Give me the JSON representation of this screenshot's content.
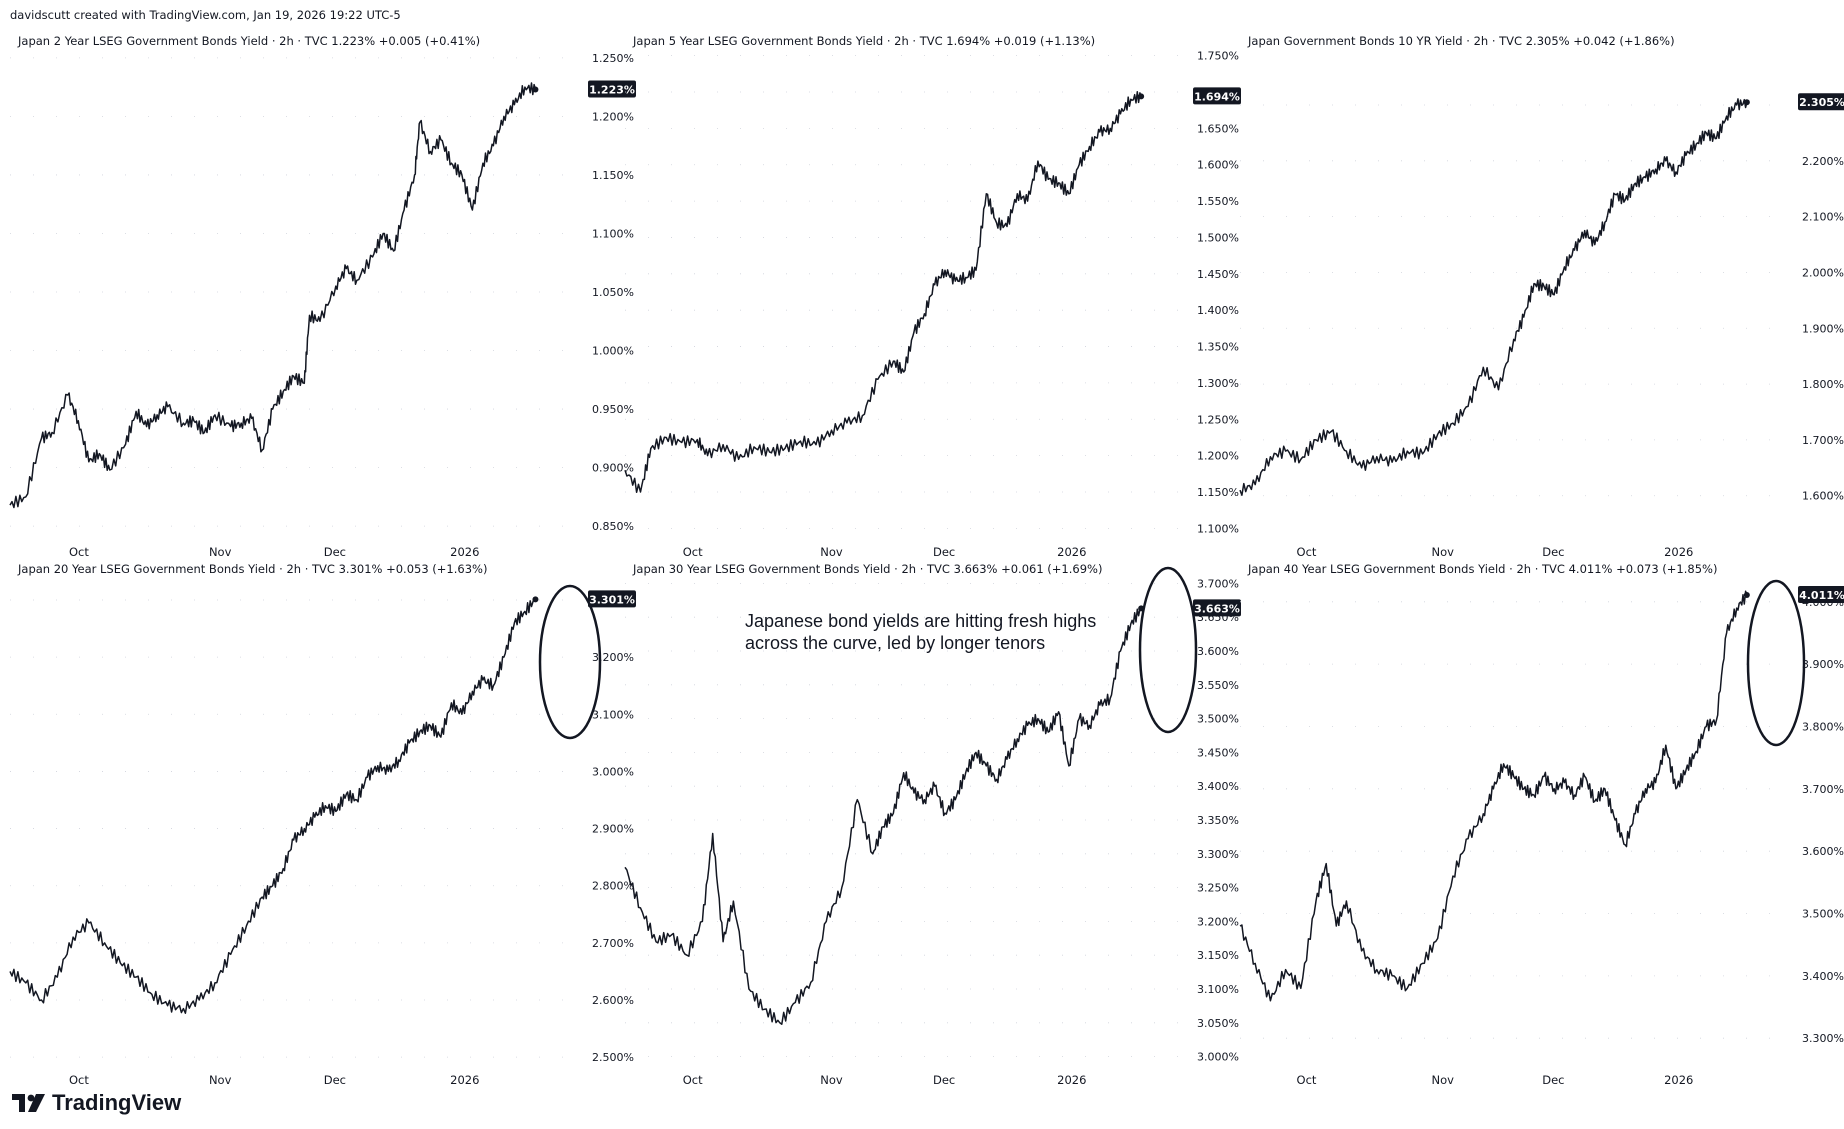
{
  "header": "davidscutt created with TradingView.com, Jan 19, 2026 19:22 UTC-5",
  "brand": "TradingView",
  "brand_logo": "tradingview-logo",
  "annotation": {
    "line1": "Japanese bond yields are hitting fresh highs",
    "line2": "across the curve, led by longer tenors"
  },
  "x_ticks": [
    {
      "label": "Oct",
      "t": 0.122
    },
    {
      "label": "Nov",
      "t": 0.372
    },
    {
      "label": "Dec",
      "t": 0.575
    },
    {
      "label": "2026",
      "t": 0.805
    }
  ],
  "chart_data": [
    {
      "type": "line",
      "title": "Japan 2 Year LSEG Government Bonds Yield · 2h · TVC  1.223%  +0.005 (+0.41%)",
      "last_label": "1.223%",
      "ylim": [
        0.845,
        1.255
      ],
      "y_ticks": [
        "0.850%",
        "0.900%",
        "0.950%",
        "1.000%",
        "1.050%",
        "1.100%",
        "1.150%",
        "1.200%",
        "1.250%"
      ],
      "y_tick_values": [
        0.85,
        0.9,
        0.95,
        1.0,
        1.05,
        1.1,
        1.15,
        1.2,
        1.25
      ],
      "x": [
        0,
        0.03,
        0.06,
        0.08,
        0.11,
        0.13,
        0.15,
        0.17,
        0.19,
        0.22,
        0.24,
        0.26,
        0.28,
        0.3,
        0.33,
        0.35,
        0.37,
        0.39,
        0.42,
        0.44,
        0.46,
        0.48,
        0.5,
        0.52,
        0.54,
        0.56,
        0.57,
        0.59,
        0.62,
        0.64,
        0.66,
        0.69,
        0.71,
        0.73,
        0.75,
        0.77,
        0.78,
        0.8,
        0.82,
        0.84,
        0.86,
        0.88,
        0.9,
        0.92,
        0.94,
        0.96,
        0.98,
        1.0
      ],
      "y": [
        0.868,
        0.875,
        0.925,
        0.93,
        0.962,
        0.94,
        0.905,
        0.912,
        0.898,
        0.92,
        0.948,
        0.935,
        0.945,
        0.952,
        0.938,
        0.94,
        0.93,
        0.945,
        0.935,
        0.938,
        0.942,
        0.915,
        0.95,
        0.965,
        0.978,
        0.972,
        1.03,
        1.025,
        1.055,
        1.07,
        1.06,
        1.08,
        1.1,
        1.085,
        1.12,
        1.15,
        1.195,
        1.17,
        1.18,
        1.16,
        1.15,
        1.12,
        1.16,
        1.175,
        1.2,
        1.21,
        1.225,
        1.223
      ]
    },
    {
      "type": "line",
      "title": "Japan 5 Year LSEG Government Bonds Yield · 2h · TVC  1.694%  +0.019 (+1.13%)",
      "last_label": "1.694%",
      "ylim": [
        1.095,
        1.755
      ],
      "y_ticks": [
        "1.100%",
        "1.150%",
        "1.200%",
        "1.250%",
        "1.300%",
        "1.350%",
        "1.400%",
        "1.450%",
        "1.500%",
        "1.550%",
        "1.600%",
        "1.650%",
        "1.700%",
        "1.750%"
      ],
      "y_tick_values": [
        1.1,
        1.15,
        1.2,
        1.25,
        1.3,
        1.35,
        1.4,
        1.45,
        1.5,
        1.55,
        1.6,
        1.65,
        1.7,
        1.75
      ],
      "x": [
        0,
        0.03,
        0.05,
        0.08,
        0.11,
        0.14,
        0.16,
        0.19,
        0.22,
        0.25,
        0.28,
        0.31,
        0.34,
        0.37,
        0.4,
        0.43,
        0.46,
        0.49,
        0.52,
        0.54,
        0.56,
        0.58,
        0.6,
        0.62,
        0.64,
        0.66,
        0.68,
        0.7,
        0.72,
        0.74,
        0.76,
        0.78,
        0.8,
        0.82,
        0.84,
        0.86,
        0.88,
        0.9,
        0.92,
        0.94,
        0.96,
        0.98,
        1.0
      ],
      "y": [
        1.18,
        1.15,
        1.21,
        1.225,
        1.218,
        1.222,
        1.2,
        1.215,
        1.195,
        1.212,
        1.205,
        1.21,
        1.22,
        1.215,
        1.235,
        1.245,
        1.255,
        1.305,
        1.33,
        1.315,
        1.37,
        1.395,
        1.435,
        1.455,
        1.44,
        1.445,
        1.455,
        1.56,
        1.52,
        1.515,
        1.56,
        1.55,
        1.605,
        1.58,
        1.575,
        1.56,
        1.6,
        1.625,
        1.645,
        1.65,
        1.67,
        1.69,
        1.694
      ]
    },
    {
      "type": "line",
      "title": "Japan Government Bonds 10 YR Yield · 2h · TVC  2.305%  +0.042 (+1.86%)",
      "last_label": "2.305%",
      "ylim": [
        1.535,
        2.395
      ],
      "y_ticks": [
        "1.600%",
        "1.700%",
        "1.800%",
        "1.900%",
        "2.000%",
        "2.100%",
        "2.200%",
        "2.300%"
      ],
      "y_tick_values": [
        1.6,
        1.7,
        1.8,
        1.9,
        2.0,
        2.1,
        2.2,
        2.3
      ],
      "x": [
        0,
        0.03,
        0.06,
        0.09,
        0.12,
        0.15,
        0.18,
        0.21,
        0.24,
        0.27,
        0.3,
        0.33,
        0.36,
        0.39,
        0.42,
        0.45,
        0.48,
        0.51,
        0.54,
        0.56,
        0.58,
        0.6,
        0.62,
        0.64,
        0.66,
        0.68,
        0.7,
        0.72,
        0.74,
        0.76,
        0.78,
        0.8,
        0.82,
        0.84,
        0.86,
        0.88,
        0.9,
        0.92,
        0.94,
        0.96,
        0.98,
        1.0
      ],
      "y": [
        1.61,
        1.62,
        1.67,
        1.68,
        1.665,
        1.7,
        1.715,
        1.68,
        1.65,
        1.67,
        1.66,
        1.68,
        1.675,
        1.71,
        1.73,
        1.76,
        1.83,
        1.79,
        1.88,
        1.92,
        1.98,
        1.975,
        1.96,
        2.01,
        2.04,
        2.075,
        2.05,
        2.09,
        2.14,
        2.13,
        2.16,
        2.17,
        2.185,
        2.2,
        2.18,
        2.21,
        2.23,
        2.25,
        2.24,
        2.28,
        2.3,
        2.305
      ]
    },
    {
      "type": "line",
      "title": "Japan 20 Year LSEG Government Bonds Yield · 2h · TVC  3.301%  +0.053 (+1.63%)",
      "last_label": "3.301%",
      "ylim": [
        2.495,
        3.335
      ],
      "y_ticks": [
        "2.500%",
        "2.600%",
        "2.700%",
        "2.800%",
        "2.900%",
        "3.000%",
        "3.100%",
        "3.200%",
        "3.300%"
      ],
      "y_tick_values": [
        2.5,
        2.6,
        2.7,
        2.8,
        2.9,
        3.0,
        3.1,
        3.2,
        3.3
      ],
      "x": [
        0,
        0.03,
        0.06,
        0.09,
        0.12,
        0.15,
        0.18,
        0.21,
        0.24,
        0.27,
        0.3,
        0.33,
        0.36,
        0.39,
        0.42,
        0.45,
        0.48,
        0.5,
        0.52,
        0.54,
        0.56,
        0.58,
        0.6,
        0.62,
        0.64,
        0.66,
        0.68,
        0.7,
        0.72,
        0.74,
        0.76,
        0.78,
        0.8,
        0.82,
        0.84,
        0.86,
        0.88,
        0.9,
        0.92,
        0.94,
        0.96,
        0.98,
        1.0
      ],
      "y": [
        2.65,
        2.63,
        2.6,
        2.64,
        2.71,
        2.735,
        2.7,
        2.665,
        2.64,
        2.61,
        2.59,
        2.585,
        2.6,
        2.63,
        2.68,
        2.73,
        2.78,
        2.8,
        2.83,
        2.88,
        2.9,
        2.92,
        2.94,
        2.93,
        2.96,
        2.95,
        2.99,
        3.01,
        3.0,
        3.02,
        3.05,
        3.07,
        3.08,
        3.06,
        3.12,
        3.1,
        3.14,
        3.16,
        3.15,
        3.2,
        3.26,
        3.28,
        3.301
      ]
    },
    {
      "type": "line",
      "title": "Japan 30 Year LSEG Government Bonds Yield · 2h · TVC  3.663%  +0.061 (+1.69%)",
      "last_label": "3.663%",
      "ylim": [
        2.995,
        3.705
      ],
      "y_ticks": [
        "3.000%",
        "3.050%",
        "3.100%",
        "3.150%",
        "3.200%",
        "3.250%",
        "3.300%",
        "3.350%",
        "3.400%",
        "3.450%",
        "3.500%",
        "3.550%",
        "3.600%",
        "3.650%",
        "3.700%"
      ],
      "y_tick_values": [
        3.0,
        3.05,
        3.1,
        3.15,
        3.2,
        3.25,
        3.3,
        3.35,
        3.4,
        3.45,
        3.5,
        3.55,
        3.6,
        3.65,
        3.7
      ],
      "x": [
        0,
        0.03,
        0.06,
        0.09,
        0.12,
        0.15,
        0.17,
        0.19,
        0.21,
        0.24,
        0.27,
        0.3,
        0.33,
        0.36,
        0.39,
        0.42,
        0.45,
        0.48,
        0.5,
        0.52,
        0.54,
        0.56,
        0.58,
        0.6,
        0.62,
        0.64,
        0.66,
        0.68,
        0.7,
        0.72,
        0.74,
        0.76,
        0.78,
        0.8,
        0.82,
        0.84,
        0.86,
        0.88,
        0.9,
        0.92,
        0.94,
        0.96,
        0.98,
        1.0
      ],
      "y": [
        3.28,
        3.22,
        3.17,
        3.18,
        3.15,
        3.2,
        3.33,
        3.17,
        3.23,
        3.1,
        3.07,
        3.05,
        3.08,
        3.11,
        3.2,
        3.25,
        3.38,
        3.3,
        3.34,
        3.36,
        3.42,
        3.39,
        3.38,
        3.4,
        3.36,
        3.38,
        3.42,
        3.45,
        3.43,
        3.41,
        3.44,
        3.47,
        3.49,
        3.5,
        3.48,
        3.51,
        3.43,
        3.5,
        3.49,
        3.52,
        3.53,
        3.6,
        3.64,
        3.663
      ]
    },
    {
      "type": "line",
      "title": "Japan 40 Year LSEG Government Bonds Yield · 2h · TVC  4.011%  +0.073 (+1.85%)",
      "last_label": "4.011%",
      "ylim": [
        3.265,
        4.035
      ],
      "y_ticks": [
        "3.300%",
        "3.400%",
        "3.500%",
        "3.600%",
        "3.700%",
        "3.800%",
        "3.900%",
        "4.000%"
      ],
      "y_tick_values": [
        3.3,
        3.4,
        3.5,
        3.6,
        3.7,
        3.8,
        3.9,
        4.0
      ],
      "x": [
        0,
        0.03,
        0.06,
        0.09,
        0.12,
        0.15,
        0.17,
        0.19,
        0.21,
        0.24,
        0.27,
        0.3,
        0.33,
        0.36,
        0.39,
        0.42,
        0.45,
        0.48,
        0.5,
        0.52,
        0.54,
        0.56,
        0.58,
        0.6,
        0.62,
        0.64,
        0.66,
        0.68,
        0.7,
        0.72,
        0.74,
        0.76,
        0.78,
        0.8,
        0.82,
        0.84,
        0.86,
        0.88,
        0.9,
        0.92,
        0.94,
        0.96,
        0.98,
        1.0
      ],
      "y": [
        3.48,
        3.42,
        3.36,
        3.41,
        3.38,
        3.52,
        3.58,
        3.48,
        3.52,
        3.44,
        3.41,
        3.4,
        3.38,
        3.42,
        3.46,
        3.56,
        3.62,
        3.66,
        3.7,
        3.74,
        3.72,
        3.7,
        3.69,
        3.72,
        3.7,
        3.71,
        3.69,
        3.72,
        3.68,
        3.7,
        3.65,
        3.61,
        3.66,
        3.7,
        3.71,
        3.77,
        3.7,
        3.73,
        3.76,
        3.8,
        3.81,
        3.95,
        3.99,
        4.011
      ]
    }
  ]
}
